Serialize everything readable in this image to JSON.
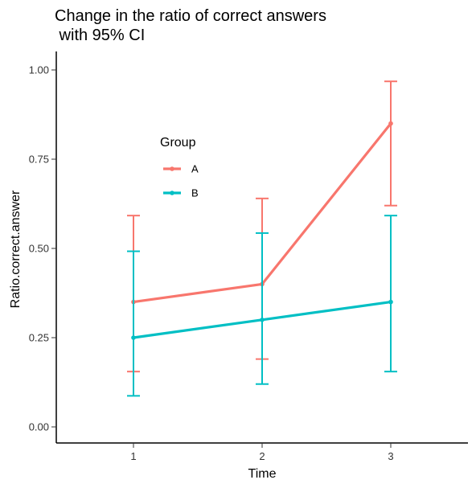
{
  "chart_data": {
    "type": "line",
    "title_line1": "Change in the ratio of correct answers",
    "title_line2": " with 95% CI",
    "xlabel": "Time",
    "ylabel": "Ratio.correct.answer",
    "x": [
      1,
      2,
      3
    ],
    "xlim": [
      0.4,
      3.6
    ],
    "ylim": [
      0,
      1
    ],
    "y_ticks": [
      "0.00",
      "0.25",
      "0.50",
      "0.75",
      "1.00"
    ],
    "x_ticks": [
      "1",
      "2",
      "3"
    ],
    "grid": false,
    "legend_title": "Group",
    "legend_position": "inside-top-left",
    "series": [
      {
        "name": "A",
        "color": "#F8766D",
        "values": [
          0.35,
          0.4,
          0.85
        ],
        "ci_lower": [
          0.155,
          0.19,
          0.62
        ],
        "ci_upper": [
          0.592,
          0.64,
          0.968
        ]
      },
      {
        "name": "B",
        "color": "#00BFC4",
        "values": [
          0.25,
          0.3,
          0.35
        ],
        "ci_lower": [
          0.087,
          0.12,
          0.155
        ],
        "ci_upper": [
          0.492,
          0.543,
          0.592
        ]
      }
    ]
  }
}
